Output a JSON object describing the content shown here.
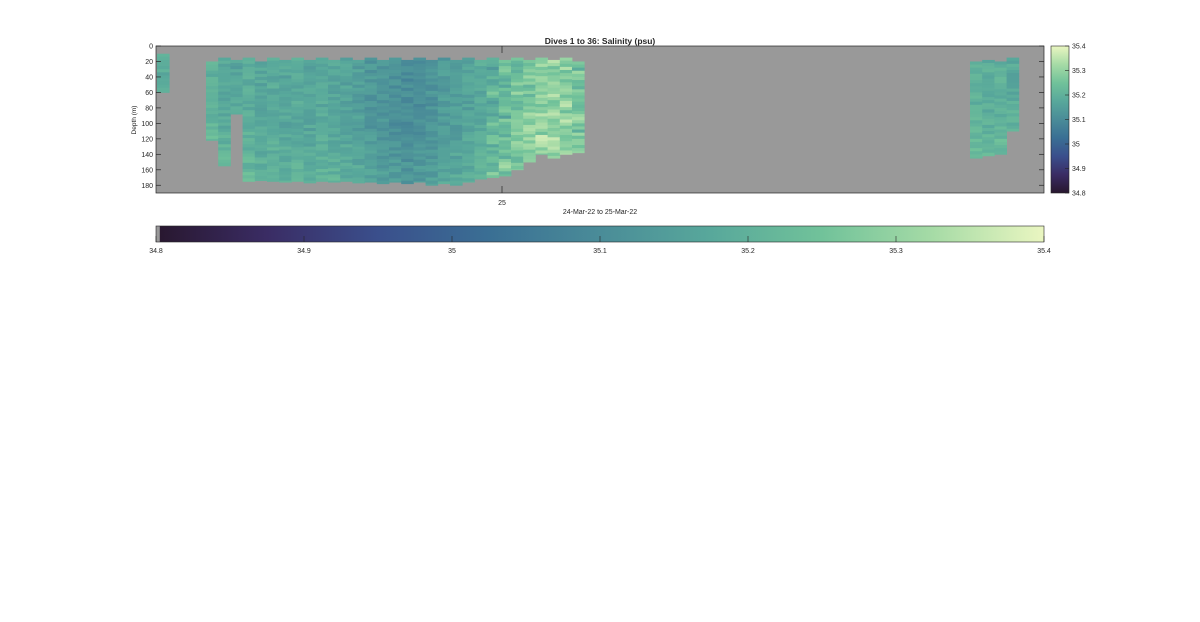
{
  "chart_data": {
    "type": "heatmap",
    "title": "Dives 1 to 36: Salinity (psu)",
    "xlabel": "24-Mar-22 to 25-Mar-22",
    "ylabel": "Depth (m)",
    "x_ticks": [
      "25"
    ],
    "y_ticks": [
      "0",
      "20",
      "40",
      "60",
      "80",
      "100",
      "120",
      "140",
      "160",
      "180"
    ],
    "ylim": [
      0,
      190
    ],
    "y_reversed": true,
    "clim": [
      34.8,
      35.4
    ],
    "colorbar_ticks": [
      "34.8",
      "34.9",
      "35",
      "35.1",
      "35.2",
      "35.3",
      "35.4"
    ],
    "bottom_colorbar_ticks": [
      "34.8",
      "34.9",
      "35",
      "35.1",
      "35.2",
      "35.3",
      "35.4"
    ],
    "background_color": "#999999",
    "colormap": [
      "#28172e",
      "#3a2c64",
      "#3a4f8c",
      "#3a6f94",
      "#4a8c98",
      "#58a89b",
      "#71c29a",
      "#a6dba6",
      "#eaf6c1"
    ],
    "dives": [
      {
        "dive": 1,
        "top": 10,
        "bottom": 60,
        "mean": 35.18
      },
      {
        "dive": 2,
        "top": 20,
        "bottom": 122,
        "mean": 35.2
      },
      {
        "dive": 3,
        "top": 15,
        "bottom": 155,
        "mean": 35.18
      },
      {
        "dive": 4,
        "top": 18,
        "bottom": 88,
        "mean": 35.16
      },
      {
        "dive": 5,
        "top": 15,
        "bottom": 175,
        "mean": 35.19
      },
      {
        "dive": 6,
        "top": 20,
        "bottom": 174,
        "mean": 35.17
      },
      {
        "dive": 7,
        "top": 15,
        "bottom": 175,
        "mean": 35.18
      },
      {
        "dive": 8,
        "top": 18,
        "bottom": 176,
        "mean": 35.17
      },
      {
        "dive": 9,
        "top": 15,
        "bottom": 175,
        "mean": 35.18
      },
      {
        "dive": 10,
        "top": 18,
        "bottom": 177,
        "mean": 35.17
      },
      {
        "dive": 11,
        "top": 15,
        "bottom": 175,
        "mean": 35.18
      },
      {
        "dive": 12,
        "top": 18,
        "bottom": 176,
        "mean": 35.17
      },
      {
        "dive": 13,
        "top": 15,
        "bottom": 175,
        "mean": 35.16
      },
      {
        "dive": 14,
        "top": 18,
        "bottom": 177,
        "mean": 35.15
      },
      {
        "dive": 15,
        "top": 15,
        "bottom": 176,
        "mean": 35.13
      },
      {
        "dive": 16,
        "top": 18,
        "bottom": 178,
        "mean": 35.12
      },
      {
        "dive": 17,
        "top": 15,
        "bottom": 176,
        "mean": 35.11
      },
      {
        "dive": 18,
        "top": 18,
        "bottom": 178,
        "mean": 35.1
      },
      {
        "dive": 19,
        "top": 15,
        "bottom": 176,
        "mean": 35.11
      },
      {
        "dive": 20,
        "top": 18,
        "bottom": 180,
        "mean": 35.12
      },
      {
        "dive": 21,
        "top": 15,
        "bottom": 178,
        "mean": 35.14
      },
      {
        "dive": 22,
        "top": 18,
        "bottom": 180,
        "mean": 35.15
      },
      {
        "dive": 23,
        "top": 15,
        "bottom": 176,
        "mean": 35.16
      },
      {
        "dive": 24,
        "top": 18,
        "bottom": 172,
        "mean": 35.18
      },
      {
        "dive": 25,
        "top": 15,
        "bottom": 170,
        "mean": 35.2
      },
      {
        "dive": 26,
        "top": 18,
        "bottom": 168,
        "mean": 35.23
      },
      {
        "dive": 27,
        "top": 15,
        "bottom": 160,
        "mean": 35.25
      },
      {
        "dive": 28,
        "top": 18,
        "bottom": 150,
        "mean": 35.27
      },
      {
        "dive": 29,
        "top": 15,
        "bottom": 140,
        "mean": 35.29
      },
      {
        "dive": 30,
        "top": 18,
        "bottom": 145,
        "mean": 35.3
      },
      {
        "dive": 31,
        "top": 15,
        "bottom": 140,
        "mean": 35.28
      },
      {
        "dive": 32,
        "top": 20,
        "bottom": 138,
        "mean": 35.25
      },
      {
        "dive": 33,
        "top": 20,
        "bottom": 145,
        "mean": 35.2
      },
      {
        "dive": 34,
        "top": 18,
        "bottom": 142,
        "mean": 35.19
      },
      {
        "dive": 35,
        "top": 20,
        "bottom": 140,
        "mean": 35.2
      },
      {
        "dive": 36,
        "top": 15,
        "bottom": 110,
        "mean": 35.18
      }
    ]
  }
}
